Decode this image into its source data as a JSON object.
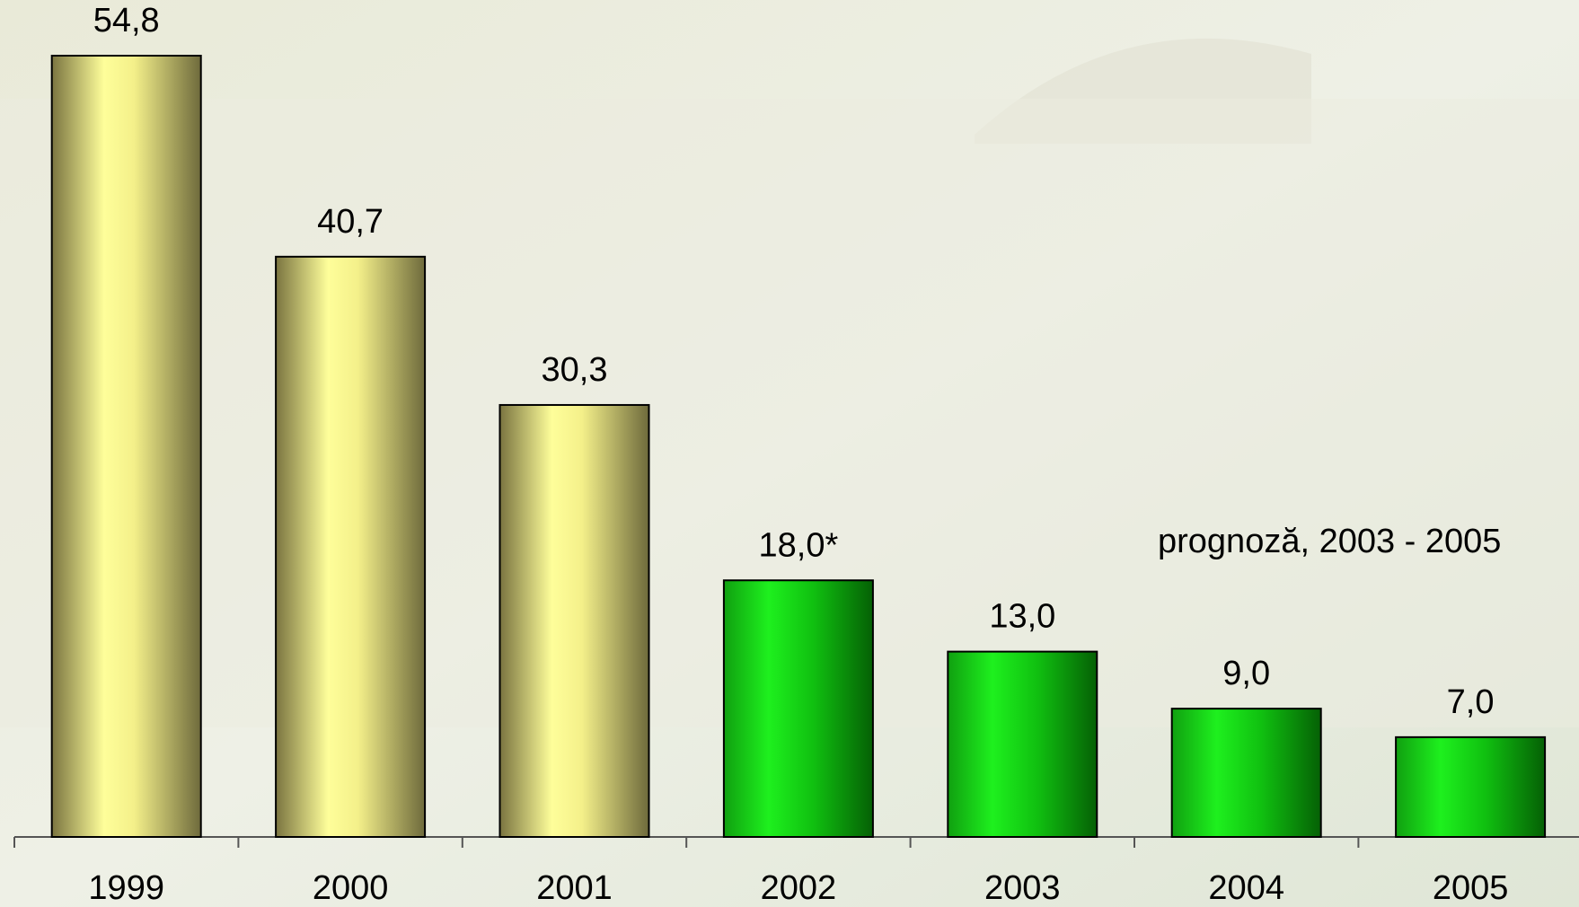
{
  "chart_data": {
    "type": "bar",
    "categories": [
      "1999",
      "2000",
      "2001",
      "2002",
      "2003",
      "2004",
      "2005"
    ],
    "values": [
      54.8,
      40.7,
      30.3,
      18.0,
      13.0,
      9.0,
      7.0
    ],
    "value_labels": [
      "54,8",
      "40,7",
      "30,3",
      "18,0*",
      "13,0",
      "9,0",
      "7,0"
    ],
    "colors": [
      "yellow",
      "yellow",
      "yellow",
      "green",
      "green",
      "green",
      "green"
    ],
    "annotation": "prognoză, 2003 - 2005"
  }
}
